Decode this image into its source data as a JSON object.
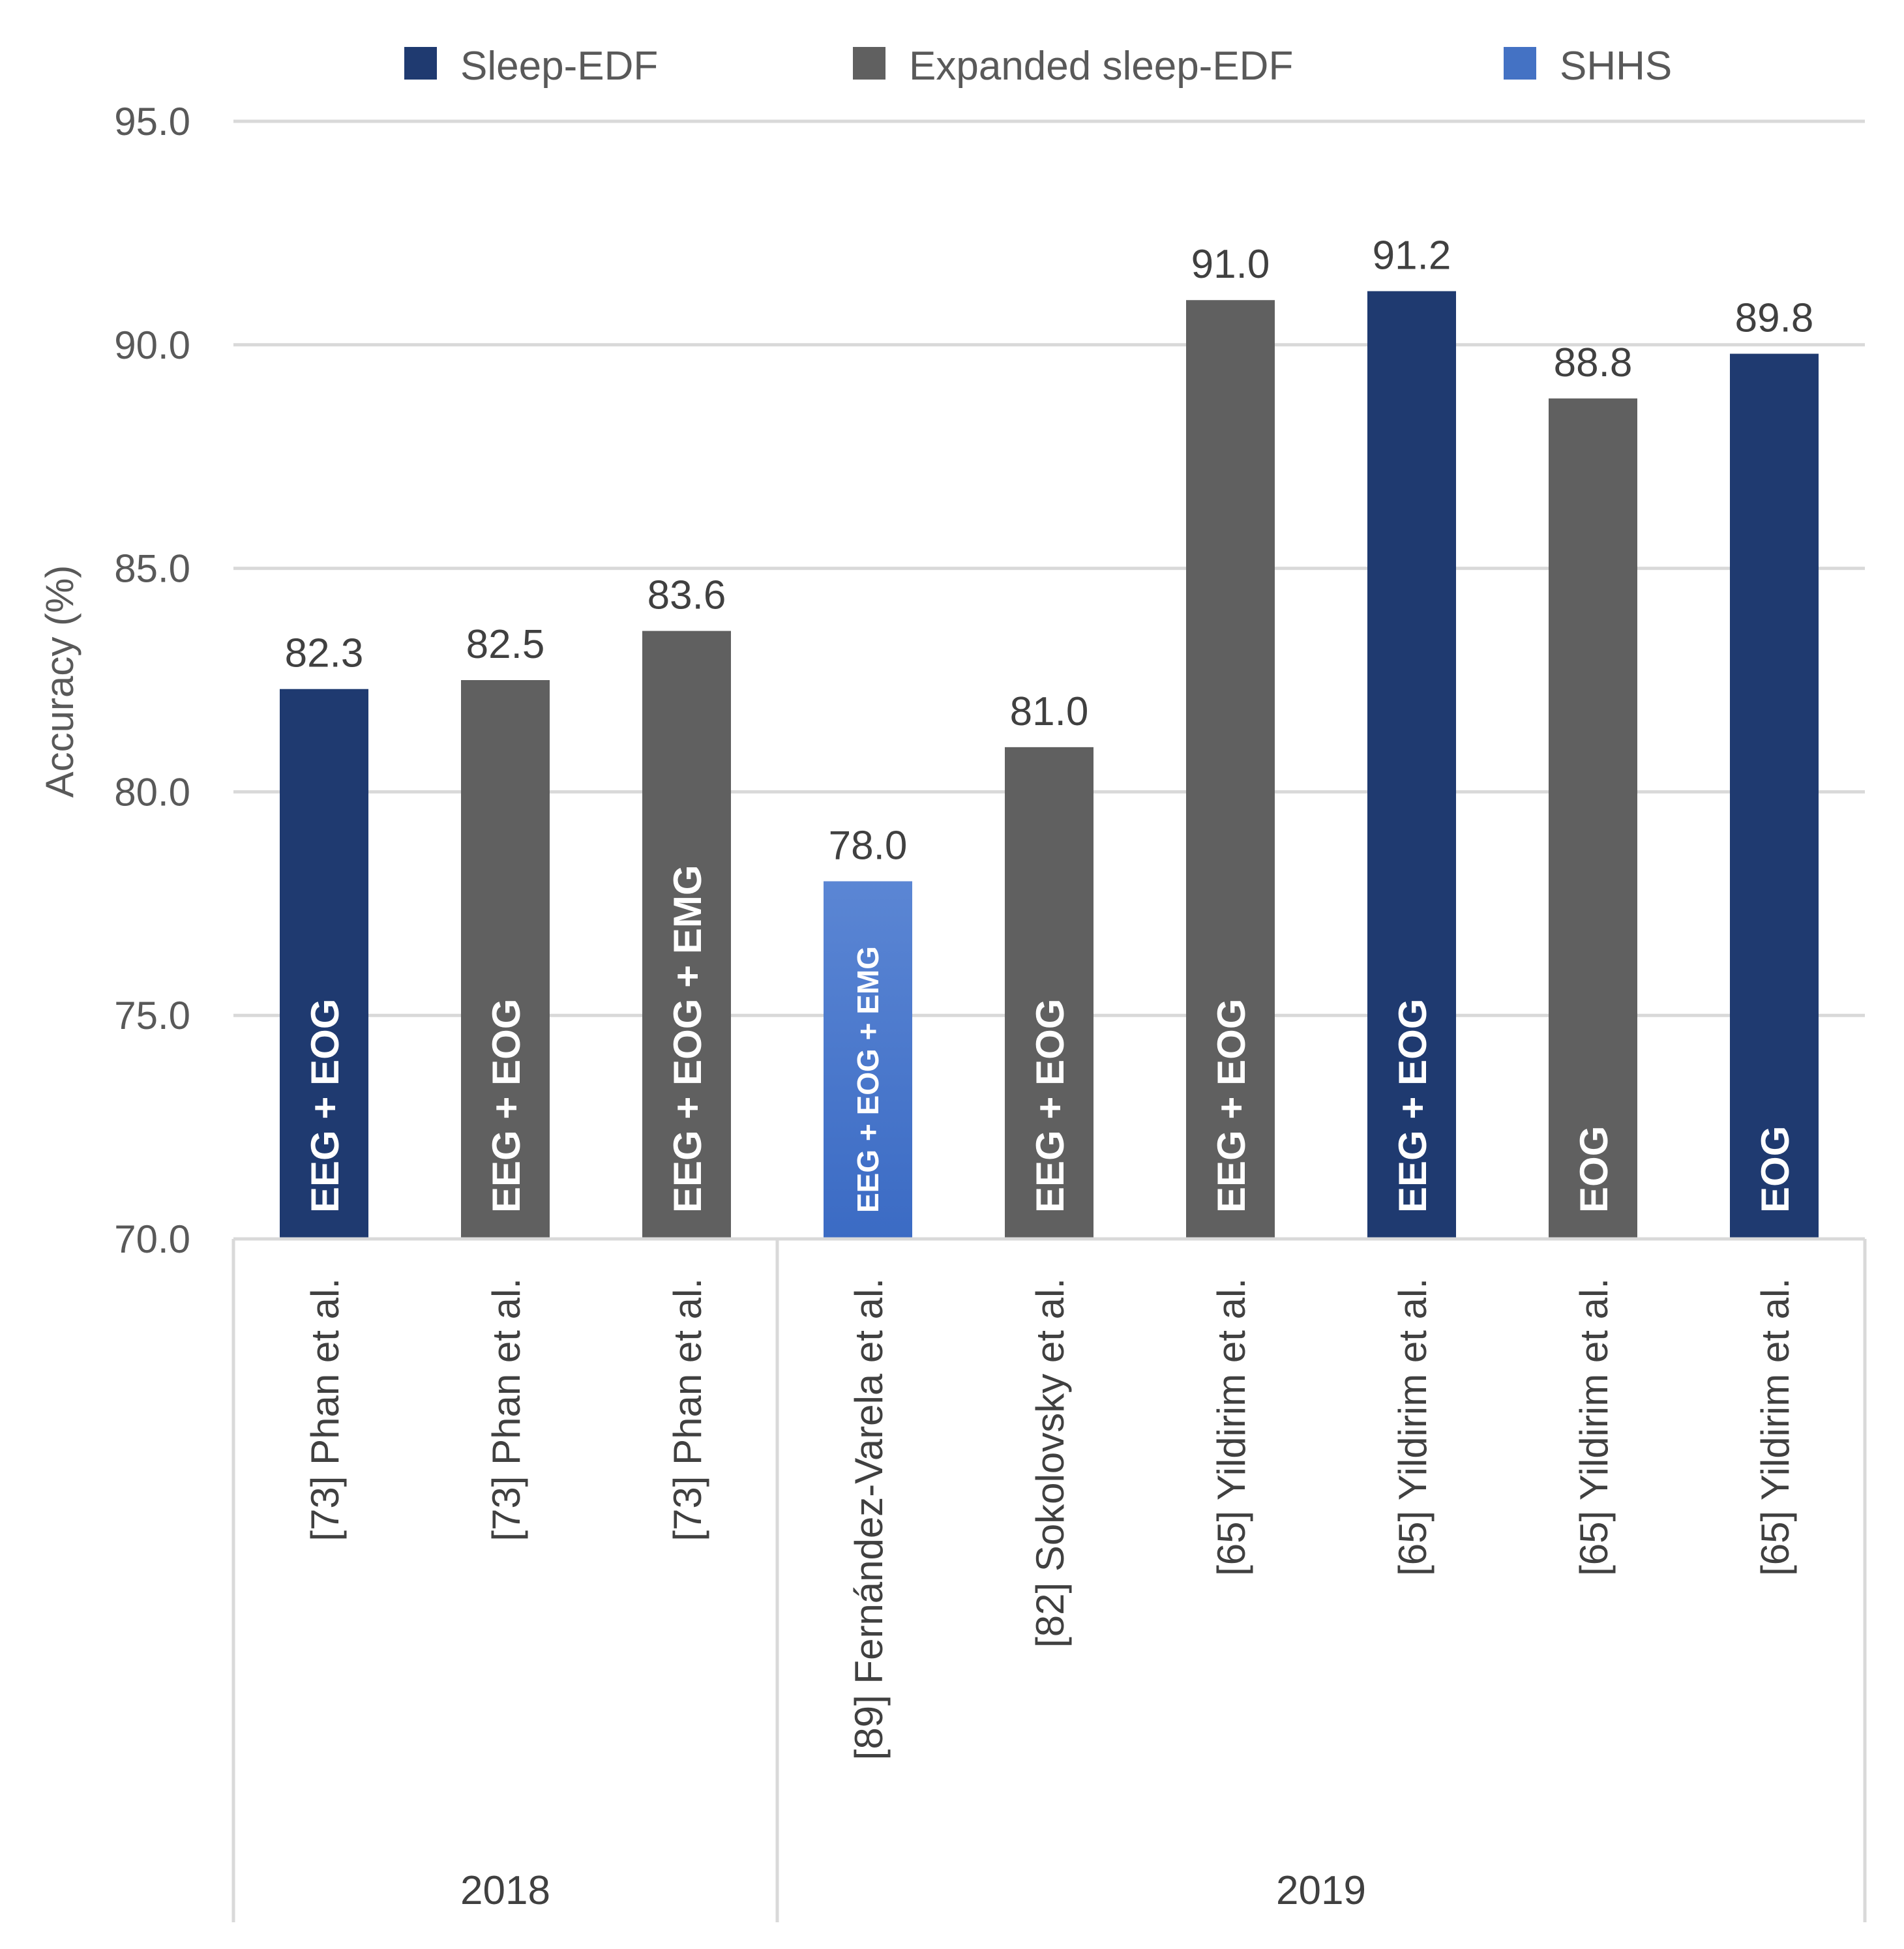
{
  "chart_data": {
    "type": "bar",
    "title": "",
    "ylabel": "Accuracy (%)",
    "xlabel": "",
    "ylim": [
      70,
      95
    ],
    "yticks": [
      "70.0",
      "75.0",
      "80.0",
      "85.0",
      "90.0",
      "95.0"
    ],
    "grid": true,
    "legend_position": "top",
    "legend": [
      {
        "name": "Sleep-EDF",
        "color": "#1f3a70"
      },
      {
        "name": "Expanded sleep-EDF",
        "color": "#606060"
      },
      {
        "name": "SHHS",
        "color": "#4472c4"
      }
    ],
    "bars": [
      {
        "category": "[73] Phan et al.",
        "value": 82.3,
        "value_label": "82.3",
        "inner_label": "EEG + EOG",
        "dataset": "Sleep-EDF",
        "group": "2018"
      },
      {
        "category": "[73] Phan et al.",
        "value": 82.5,
        "value_label": "82.5",
        "inner_label": "EEG + EOG",
        "dataset": "Expanded sleep-EDF",
        "group": "2018"
      },
      {
        "category": "[73] Phan et al.",
        "value": 83.6,
        "value_label": "83.6",
        "inner_label": "EEG + EOG + EMG",
        "dataset": "Expanded sleep-EDF",
        "group": "2018"
      },
      {
        "category": "[89] Fernández-Varela et al.",
        "value": 78.0,
        "value_label": "78.0",
        "inner_label": "EEG + EOG + EMG",
        "dataset": "SHHS",
        "group": "2019"
      },
      {
        "category": "[82] Sokolovsky et al.",
        "value": 81.0,
        "value_label": "81.0",
        "inner_label": "EEG + EOG",
        "dataset": "Expanded sleep-EDF",
        "group": "2019"
      },
      {
        "category": "[65] Yildirim et al.",
        "value": 91.0,
        "value_label": "91.0",
        "inner_label": "EEG + EOG",
        "dataset": "Expanded sleep-EDF",
        "group": "2019"
      },
      {
        "category": "[65] Yildirim et al.",
        "value": 91.2,
        "value_label": "91.2",
        "inner_label": "EEG + EOG",
        "dataset": "Sleep-EDF",
        "group": "2019"
      },
      {
        "category": "[65] Yildirim et al.",
        "value": 88.8,
        "value_label": "88.8",
        "inner_label": "EOG",
        "dataset": "Expanded sleep-EDF",
        "group": "2019"
      },
      {
        "category": "[65] Yildirim et al.",
        "value": 89.8,
        "value_label": "89.8",
        "inner_label": "EOG",
        "dataset": "Sleep-EDF",
        "group": "2019"
      }
    ],
    "groups": [
      {
        "label": "2018",
        "count": 3
      },
      {
        "label": "2019",
        "count": 6
      }
    ]
  }
}
